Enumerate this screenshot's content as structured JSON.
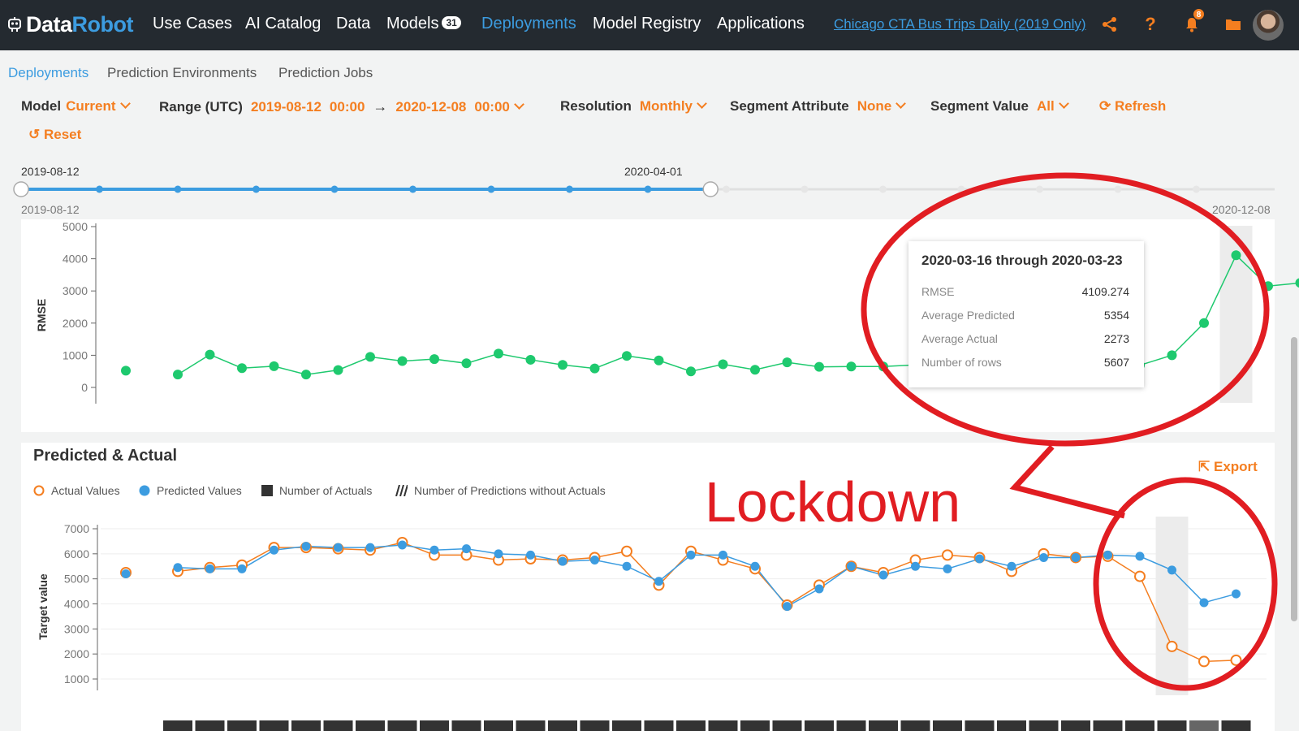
{
  "colors": {
    "topbar": "#242a30",
    "accent_blue": "#3c9ce0",
    "accent_orange": "#f47e20",
    "rmse_green": "#1ec96e",
    "annotation_red": "#e11d22"
  },
  "header": {
    "logo_part1": "Data",
    "logo_part2": "Robot",
    "nav": [
      {
        "label": "Use Cases"
      },
      {
        "label": "AI Catalog"
      },
      {
        "label": "Data"
      },
      {
        "label": "Models",
        "badge": "31"
      },
      {
        "label": "Deployments"
      },
      {
        "label": "Model Registry"
      },
      {
        "label": "Applications"
      }
    ],
    "deployment_title": "Chicago CTA Bus Trips Daily (2019 Only)",
    "notification_count": "8",
    "icons": [
      "share-icon",
      "help-icon",
      "bell-icon",
      "folder-icon",
      "avatar"
    ]
  },
  "subnav": [
    "Deployments",
    "Prediction Environments",
    "Prediction Jobs"
  ],
  "filters": {
    "model_label": "Model",
    "model_value": "Current",
    "range_label": "Range (UTC)",
    "range_start": "2019-08-12",
    "range_start_time": "00:00",
    "range_arrow": "→",
    "range_end": "2020-12-08",
    "range_end_time": "00:00",
    "resolution_label": "Resolution",
    "resolution_value": "Monthly",
    "segment_attr_label": "Segment Attribute",
    "segment_attr_value": "None",
    "segment_value_label": "Segment Value",
    "segment_value_value": "All",
    "refresh": "Refresh",
    "reset": "Reset"
  },
  "slider": {
    "start_label": "2019-08-12",
    "handle_label": "2020-04-01",
    "min_label": "2019-08-12",
    "max_label": "2020-12-08",
    "selected_fraction": 0.55
  },
  "chart_data": [
    {
      "type": "scatter",
      "title": "",
      "ylabel": "RMSE",
      "ylim": [
        0,
        5000
      ],
      "yticks": [
        "5000",
        "4000",
        "3000",
        "2000",
        "1000",
        "0"
      ],
      "highlighted_index": 34,
      "series": [
        {
          "values": [
            520,
            400,
            1020,
            600,
            660,
            400,
            540,
            950,
            820,
            880,
            750,
            1050,
            860,
            700,
            590,
            980,
            840,
            500,
            720,
            550,
            780,
            640,
            650,
            650,
            700,
            680,
            700,
            710,
            680,
            680,
            680,
            690,
            1000,
            2000,
            4109,
            3150,
            3250
          ]
        }
      ]
    },
    {
      "type": "line",
      "title": "Predicted & Actual",
      "ylabel": "Target value",
      "ylim": [
        700,
        7500
      ],
      "yticks": [
        "7000",
        "6000",
        "5000",
        "4000",
        "3000",
        "2000",
        "1000"
      ],
      "legend": [
        "Actual Values",
        "Predicted Values",
        "Number of Actuals",
        "Number of Predictions without Actuals"
      ],
      "series": [
        {
          "name": "Actual Values",
          "values": [
            5250,
            5300,
            5450,
            5550,
            6250,
            6250,
            6200,
            6150,
            6450,
            5950,
            5950,
            5750,
            5800,
            5750,
            5850,
            6100,
            4750,
            6100,
            5750,
            5400,
            3950,
            4750,
            5500,
            5250,
            5750,
            5950,
            5850,
            5300,
            6000,
            5850,
            5900,
            5100,
            2300,
            1700,
            1750
          ]
        },
        {
          "name": "Predicted Values",
          "values": [
            5200,
            5450,
            5400,
            5400,
            6150,
            6300,
            6250,
            6250,
            6350,
            6150,
            6200,
            6000,
            5950,
            5700,
            5750,
            5500,
            4900,
            5950,
            5950,
            5500,
            3900,
            4600,
            5500,
            5150,
            5500,
            5400,
            5800,
            5500,
            5850,
            5850,
            5950,
            5900,
            5350,
            4050,
            4400
          ]
        }
      ]
    }
  ],
  "tooltip": {
    "title": "2020-03-16 through 2020-03-23",
    "rows": [
      {
        "label": "RMSE",
        "value": "4109.274"
      },
      {
        "label": "Average Predicted",
        "value": "5354"
      },
      {
        "label": "Average Actual",
        "value": "2273"
      },
      {
        "label": "Number of rows",
        "value": "5607"
      }
    ]
  },
  "predicted_actual": {
    "title": "Predicted & Actual",
    "export": "Export"
  },
  "annotation": {
    "text": "Lockdown"
  }
}
